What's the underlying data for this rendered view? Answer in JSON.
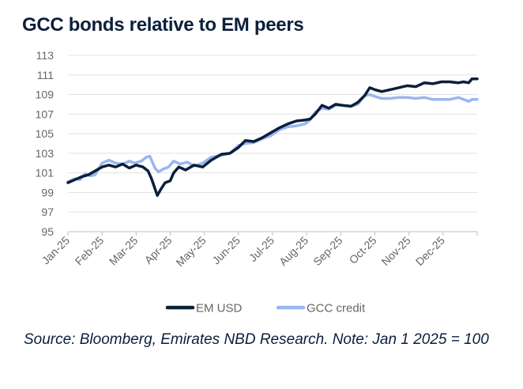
{
  "chart_data": {
    "type": "line",
    "title": "GCC bonds relative to EM peers",
    "xlabel": "",
    "ylabel": "",
    "ylim": [
      95,
      113
    ],
    "yticks": [
      95,
      97,
      99,
      101,
      103,
      105,
      107,
      109,
      111,
      113
    ],
    "xlim": [
      0,
      12
    ],
    "categories": [
      "Jan-25",
      "Feb-25",
      "Mar-25",
      "Apr-25",
      "May-25",
      "Jun-25",
      "Jul-25",
      "Aug-25",
      "Sep-25",
      "Oct-25",
      "Nov-25",
      "Dec-25"
    ],
    "grid": true,
    "legend": "bottom-center",
    "series": [
      {
        "name": "EM USD",
        "color": "#0b1f3a",
        "points": [
          [
            0,
            100.0
          ],
          [
            0.2,
            100.3
          ],
          [
            0.4,
            100.6
          ],
          [
            0.6,
            100.8
          ],
          [
            0.8,
            101.2
          ],
          [
            1.0,
            101.6
          ],
          [
            1.2,
            101.8
          ],
          [
            1.4,
            101.6
          ],
          [
            1.6,
            101.9
          ],
          [
            1.8,
            101.5
          ],
          [
            2.0,
            101.8
          ],
          [
            2.2,
            101.6
          ],
          [
            2.35,
            101.2
          ],
          [
            2.45,
            100.4
          ],
          [
            2.55,
            99.4
          ],
          [
            2.62,
            98.7
          ],
          [
            2.72,
            99.3
          ],
          [
            2.85,
            100.0
          ],
          [
            3.0,
            100.2
          ],
          [
            3.1,
            101.0
          ],
          [
            3.25,
            101.6
          ],
          [
            3.45,
            101.3
          ],
          [
            3.7,
            101.8
          ],
          [
            3.95,
            101.6
          ],
          [
            4.2,
            102.3
          ],
          [
            4.5,
            102.9
          ],
          [
            4.75,
            103.0
          ],
          [
            5.0,
            103.6
          ],
          [
            5.2,
            104.3
          ],
          [
            5.45,
            104.2
          ],
          [
            5.7,
            104.6
          ],
          [
            5.95,
            105.1
          ],
          [
            6.2,
            105.6
          ],
          [
            6.45,
            106.0
          ],
          [
            6.7,
            106.3
          ],
          [
            6.95,
            106.4
          ],
          [
            7.1,
            106.5
          ],
          [
            7.25,
            107.0
          ],
          [
            7.45,
            107.9
          ],
          [
            7.65,
            107.6
          ],
          [
            7.85,
            108.0
          ],
          [
            8.05,
            107.9
          ],
          [
            8.3,
            107.8
          ],
          [
            8.5,
            108.2
          ],
          [
            8.7,
            108.9
          ],
          [
            8.85,
            109.7
          ],
          [
            9.0,
            109.5
          ],
          [
            9.2,
            109.3
          ],
          [
            9.45,
            109.5
          ],
          [
            9.7,
            109.7
          ],
          [
            9.95,
            109.9
          ],
          [
            10.2,
            109.8
          ],
          [
            10.45,
            110.2
          ],
          [
            10.7,
            110.1
          ],
          [
            10.95,
            110.3
          ],
          [
            11.2,
            110.3
          ],
          [
            11.45,
            110.2
          ],
          [
            11.6,
            110.3
          ],
          [
            11.75,
            110.2
          ],
          [
            11.85,
            110.6
          ],
          [
            12.0,
            110.6
          ]
        ]
      },
      {
        "name": "GCC credit",
        "color": "#9bb5f0",
        "points": [
          [
            0,
            100.1
          ],
          [
            0.2,
            100.4
          ],
          [
            0.35,
            100.3
          ],
          [
            0.5,
            100.9
          ],
          [
            0.65,
            100.7
          ],
          [
            0.8,
            100.8
          ],
          [
            1.0,
            102.0
          ],
          [
            1.2,
            102.3
          ],
          [
            1.4,
            102.0
          ],
          [
            1.6,
            101.9
          ],
          [
            1.8,
            102.2
          ],
          [
            1.95,
            102.0
          ],
          [
            2.15,
            102.2
          ],
          [
            2.3,
            102.6
          ],
          [
            2.4,
            102.7
          ],
          [
            2.55,
            101.5
          ],
          [
            2.65,
            101.1
          ],
          [
            2.8,
            101.4
          ],
          [
            2.95,
            101.6
          ],
          [
            3.1,
            102.2
          ],
          [
            3.3,
            101.9
          ],
          [
            3.5,
            102.1
          ],
          [
            3.7,
            101.7
          ],
          [
            3.95,
            102.0
          ],
          [
            4.2,
            102.6
          ],
          [
            4.5,
            102.8
          ],
          [
            4.75,
            103.0
          ],
          [
            5.0,
            103.8
          ],
          [
            5.2,
            104.0
          ],
          [
            5.45,
            104.1
          ],
          [
            5.7,
            104.5
          ],
          [
            5.95,
            104.8
          ],
          [
            6.2,
            105.4
          ],
          [
            6.45,
            105.7
          ],
          [
            6.7,
            105.8
          ],
          [
            6.95,
            106.0
          ],
          [
            7.1,
            106.4
          ],
          [
            7.25,
            107.2
          ],
          [
            7.45,
            107.6
          ],
          [
            7.65,
            107.5
          ],
          [
            7.85,
            107.9
          ],
          [
            8.05,
            107.9
          ],
          [
            8.3,
            107.8
          ],
          [
            8.5,
            108.0
          ],
          [
            8.7,
            108.9
          ],
          [
            8.85,
            109.0
          ],
          [
            9.0,
            108.8
          ],
          [
            9.2,
            108.6
          ],
          [
            9.45,
            108.6
          ],
          [
            9.7,
            108.7
          ],
          [
            9.95,
            108.7
          ],
          [
            10.2,
            108.6
          ],
          [
            10.45,
            108.7
          ],
          [
            10.7,
            108.5
          ],
          [
            10.95,
            108.5
          ],
          [
            11.2,
            108.5
          ],
          [
            11.45,
            108.7
          ],
          [
            11.6,
            108.5
          ],
          [
            11.75,
            108.3
          ],
          [
            11.85,
            108.5
          ],
          [
            12.0,
            108.5
          ]
        ]
      }
    ],
    "source": "Source: Bloomberg, Emirates NBD Research. Note: Jan 1 2025 = 100"
  }
}
